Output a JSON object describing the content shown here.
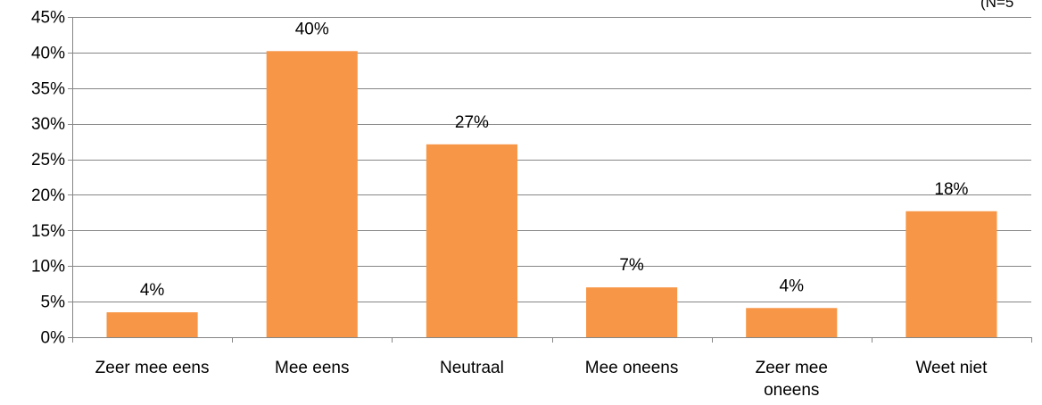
{
  "chart_data": {
    "type": "bar",
    "title": "",
    "xlabel": "",
    "ylabel": "",
    "categories": [
      [
        "Zeer mee eens"
      ],
      [
        "Mee eens"
      ],
      [
        "Neutraal"
      ],
      [
        "Mee oneens"
      ],
      [
        "Zeer mee",
        "oneens"
      ],
      [
        "Weet niet"
      ]
    ],
    "values": [
      3.5,
      40.2,
      27.1,
      7.0,
      4.1,
      17.7
    ],
    "data_labels": [
      "4%",
      "40%",
      "27%",
      "7%",
      "4%",
      "18%"
    ],
    "ylim": [
      0,
      45
    ],
    "yticks": [
      0,
      5,
      10,
      15,
      20,
      25,
      30,
      35,
      40,
      45
    ],
    "ytick_labels": [
      "0%",
      "5%",
      "10%",
      "15%",
      "20%",
      "25%",
      "30%",
      "35%",
      "40%",
      "45%"
    ],
    "grid": true,
    "legend": "none",
    "bar_color": "#F79646",
    "grid_color": "#868686",
    "axis_color": "#868686",
    "corner_note": "(N=5"
  }
}
